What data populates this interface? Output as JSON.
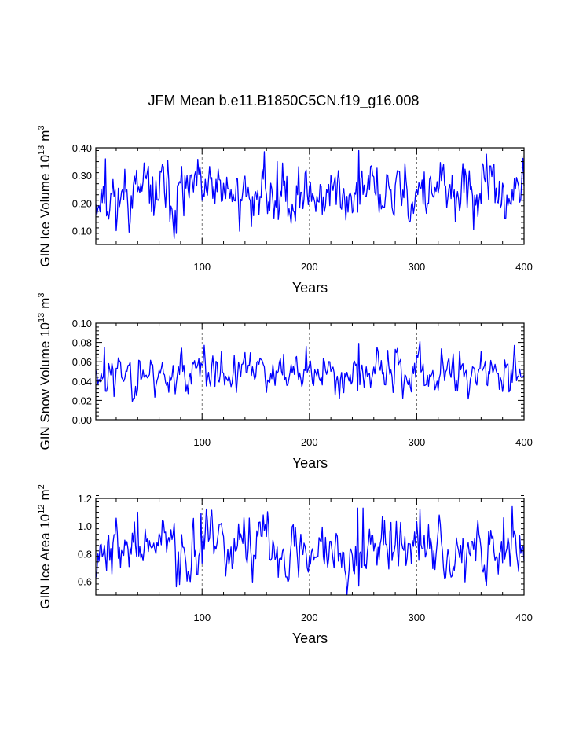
{
  "title": "JFM Mean b.e11.B1850C5CN.f19_g16.008",
  "line_color": "#0000ff",
  "chart_data": [
    {
      "type": "line",
      "ylabel_parts": {
        "main": "GIN Ice Volume 10",
        "exp": "13",
        "unit": "m",
        "unit_exp": "3"
      },
      "xlabel": "Years",
      "xlim": [
        1,
        400
      ],
      "ylim": [
        0.05,
        0.4
      ],
      "xticks": [
        100,
        200,
        300,
        400
      ],
      "yticks": [
        0.1,
        0.2,
        0.3,
        0.4
      ],
      "ytick_labels": [
        "0.10",
        "0.20",
        "0.30",
        "0.40"
      ],
      "y_minor_step": 0.02,
      "seed": 11,
      "mean": 0.232,
      "sd": 0.055,
      "phi": 0.45,
      "features": [
        [
          10,
          0.36
        ],
        [
          20,
          0.1
        ],
        [
          63,
          0.34
        ],
        [
          76,
          0.09
        ],
        [
          170,
          0.35
        ],
        [
          246,
          0.39
        ],
        [
          255,
          0.3
        ],
        [
          372,
          0.34
        ]
      ]
    },
    {
      "type": "line",
      "ylabel_parts": {
        "main": "GIN Snow Volume 10",
        "exp": "13",
        "unit": "m",
        "unit_exp": "3"
      },
      "xlabel": "Years",
      "xlim": [
        1,
        400
      ],
      "ylim": [
        0.0,
        0.1
      ],
      "xticks": [
        100,
        200,
        300,
        400
      ],
      "yticks": [
        0.0,
        0.02,
        0.04,
        0.06,
        0.08,
        0.1
      ],
      "ytick_labels": [
        "0.00",
        "0.02",
        "0.04",
        "0.06",
        "0.08",
        "0.10"
      ],
      "y_minor_step": 0.004,
      "seed": 23,
      "mean": 0.048,
      "sd": 0.011,
      "phi": 0.45,
      "features": [
        [
          9,
          0.075
        ],
        [
          18,
          0.024
        ],
        [
          102,
          0.077
        ],
        [
          197,
          0.076
        ],
        [
          246,
          0.079
        ],
        [
          303,
          0.081
        ],
        [
          340,
          0.071
        ]
      ]
    },
    {
      "type": "line",
      "ylabel_parts": {
        "main": "GIN Ice Area 10",
        "exp": "12",
        "unit": "m",
        "unit_exp": "2"
      },
      "xlabel": "Years",
      "xlim": [
        1,
        400
      ],
      "ylim": [
        0.5,
        1.2
      ],
      "xticks": [
        100,
        200,
        300,
        400
      ],
      "yticks": [
        0.6,
        0.8,
        1.0,
        1.2
      ],
      "ytick_labels": [
        "0.6",
        "0.8",
        "1.0",
        "1.2"
      ],
      "y_minor_step": 0.04,
      "seed": 37,
      "mean": 0.84,
      "sd": 0.11,
      "phi": 0.5,
      "features": [
        [
          40,
          1.1
        ],
        [
          76,
          0.56
        ],
        [
          99,
          1.09
        ],
        [
          190,
          0.63
        ],
        [
          245,
          1.13
        ],
        [
          250,
          1.13
        ],
        [
          303,
          1.12
        ],
        [
          345,
          0.59
        ],
        [
          381,
          1.06
        ]
      ]
    }
  ]
}
